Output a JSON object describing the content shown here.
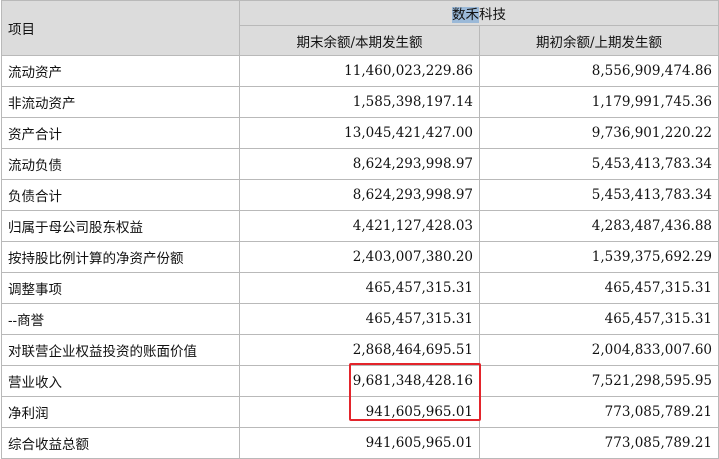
{
  "header": {
    "item_label": "项目",
    "company_highlight": "数禾",
    "company_rest": "科技",
    "col_current": "期末余额/本期发生额",
    "col_prior": "期初余额/上期发生额"
  },
  "rows": [
    {
      "label": "流动资产",
      "current": "11,460,023,229.86",
      "prior": "8,556,909,474.86"
    },
    {
      "label": "非流动资产",
      "current": "1,585,398,197.14",
      "prior": "1,179,991,745.36"
    },
    {
      "label": "资产合计",
      "current": "13,045,421,427.00",
      "prior": "9,736,901,220.22"
    },
    {
      "label": "流动负债",
      "current": "8,624,293,998.97",
      "prior": "5,453,413,783.34"
    },
    {
      "label": "负债合计",
      "current": "8,624,293,998.97",
      "prior": "5,453,413,783.34"
    },
    {
      "label": "归属于母公司股东权益",
      "current": "4,421,127,428.03",
      "prior": "4,283,487,436.88"
    },
    {
      "label": "按持股比例计算的净资产份额",
      "current": "2,403,007,380.20",
      "prior": "1,539,375,692.29"
    },
    {
      "label": "调整事项",
      "current": "465,457,315.31",
      "prior": "465,457,315.31"
    },
    {
      "label": "--商誉",
      "current": "465,457,315.31",
      "prior": "465,457,315.31"
    },
    {
      "label": "对联营企业权益投资的账面价值",
      "current": "2,868,464,695.51",
      "prior": "2,004,833,007.60"
    },
    {
      "label": "营业收入",
      "current": "9,681,348,428.16",
      "prior": "7,521,298,595.95"
    },
    {
      "label": "净利润",
      "current": "941,605,965.01",
      "prior": "773,085,789.21"
    },
    {
      "label": "综合收益总额",
      "current": "941,605,965.01",
      "prior": "773,085,789.21"
    }
  ]
}
